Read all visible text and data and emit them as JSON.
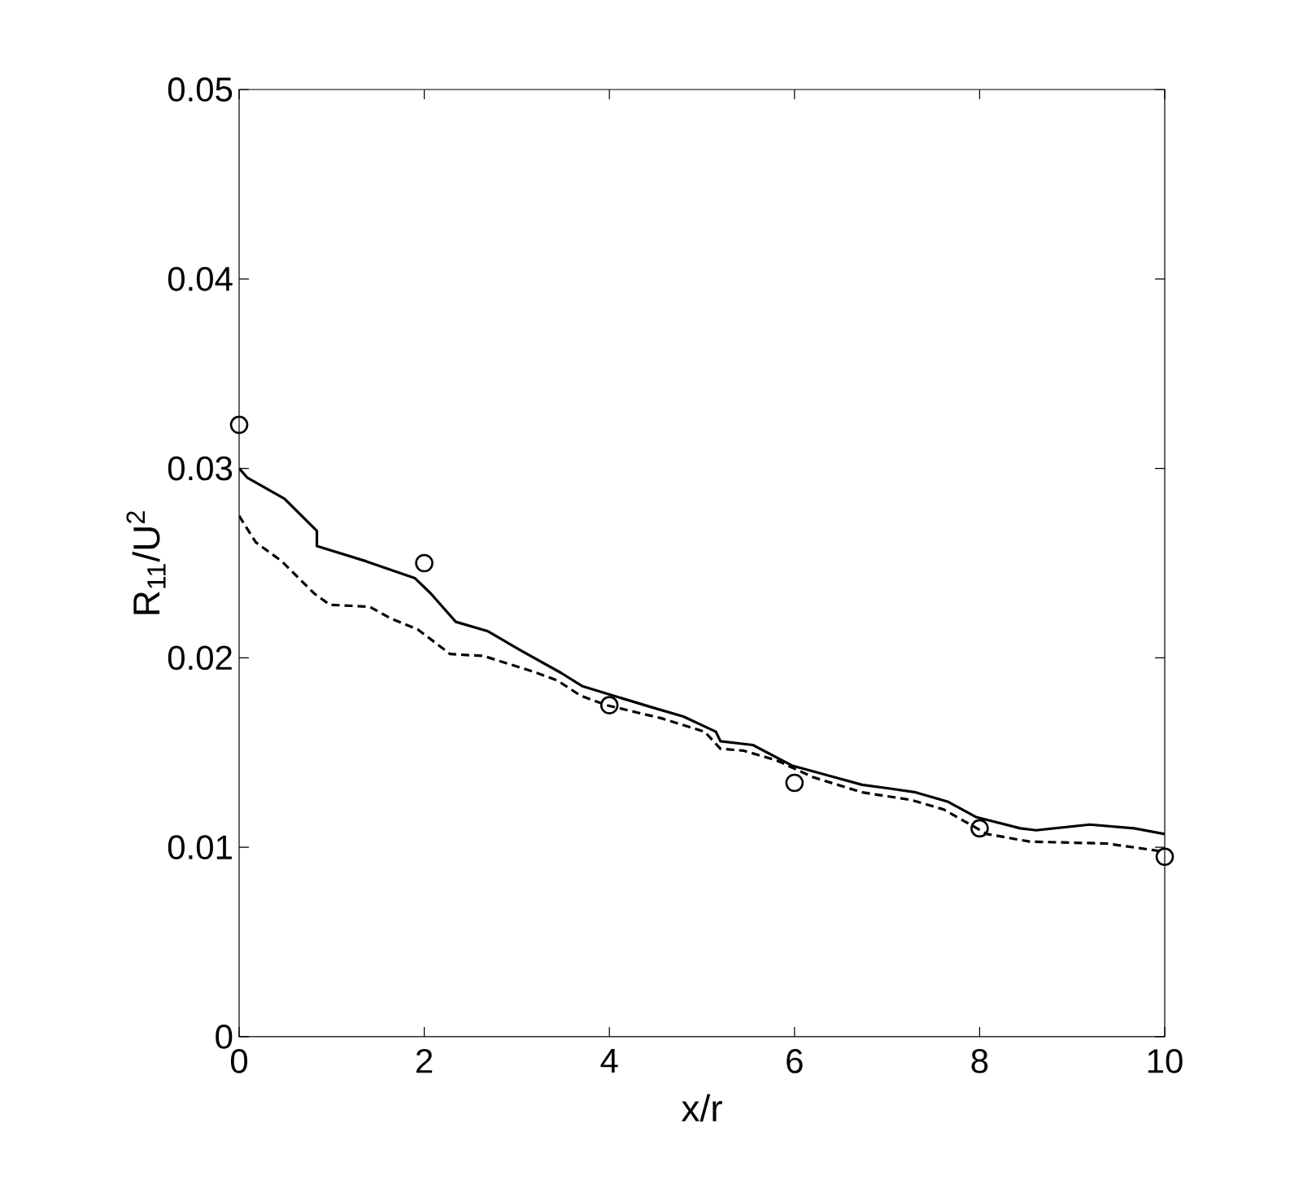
{
  "chart_data": {
    "type": "line",
    "xlabel": "x/r",
    "ylabel": "R$_{11}$/U$^{2}$",
    "xlim": [
      0,
      10
    ],
    "ylim": [
      0,
      0.05
    ],
    "xticks": [
      0,
      2,
      4,
      6,
      8,
      10
    ],
    "yticks": [
      0,
      0.01,
      0.02,
      0.03,
      0.04,
      0.05
    ],
    "grid": false,
    "series": [
      {
        "line_style": "solid",
        "marker": "none",
        "color": "#000000",
        "x": [
          0,
          0.09,
          0.49,
          0.84,
          0.84,
          1.37,
          1.9,
          2.07,
          2.34,
          2.69,
          3.04,
          3.48,
          3.71,
          4.45,
          4.8,
          5.15,
          5.2,
          5.55,
          5.98,
          6.43,
          6.73,
          7.03,
          7.31,
          7.66,
          7.96,
          8.44,
          8.61,
          9.19,
          9.67,
          10
        ],
        "values": [
          0.03,
          0.0295,
          0.0284,
          0.0267,
          0.0259,
          0.0251,
          0.0242,
          0.0234,
          0.0219,
          0.0214,
          0.0204,
          0.0192,
          0.0185,
          0.0174,
          0.0169,
          0.0161,
          0.0156,
          0.0154,
          0.0143,
          0.0137,
          0.0133,
          0.0131,
          0.0129,
          0.0124,
          0.0116,
          0.011,
          0.0109,
          0.0112,
          0.011,
          0.0107
        ]
      },
      {
        "line_style": "dashed",
        "marker": "none",
        "color": "#000000",
        "x": [
          0,
          0.05,
          0.18,
          0.46,
          0.81,
          0.98,
          1.41,
          1.63,
          1.93,
          2.28,
          2.64,
          3.16,
          3.44,
          3.69,
          3.97,
          4.57,
          5.03,
          5.2,
          5.45,
          5.8,
          6.2,
          6.73,
          7.26,
          7.61,
          8.08,
          8.54,
          9.37,
          9.95
        ],
        "values": [
          0.0275,
          0.0271,
          0.0261,
          0.0251,
          0.0234,
          0.0228,
          0.0227,
          0.0221,
          0.0215,
          0.0202,
          0.0201,
          0.0193,
          0.0188,
          0.018,
          0.0175,
          0.0168,
          0.0161,
          0.0152,
          0.0151,
          0.0146,
          0.0137,
          0.0129,
          0.0125,
          0.012,
          0.0107,
          0.0103,
          0.0102,
          0.0098
        ]
      },
      {
        "type": "scatter",
        "marker": "circle",
        "color": "#000000",
        "x": [
          0,
          2,
          4,
          6,
          8,
          10
        ],
        "values": [
          0.0323,
          0.025,
          0.0175,
          0.0134,
          0.011,
          0.0095
        ]
      }
    ]
  }
}
